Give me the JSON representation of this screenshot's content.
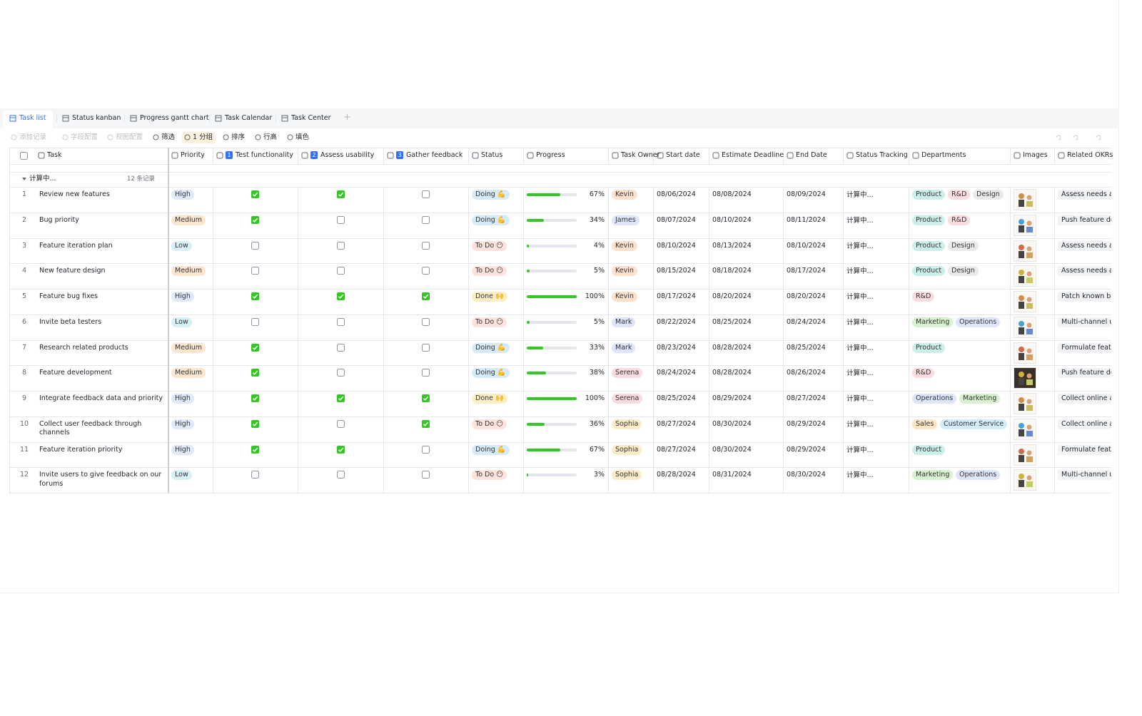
{
  "tabs": [
    "Task list",
    "Status kanban",
    "Progress gantt chart",
    "Task Calendar",
    "Task Center"
  ],
  "toolbar": [
    "添加记录",
    "字段配置",
    "视图配置",
    "筛选",
    "1 分组",
    "排序",
    "行高",
    "填色"
  ],
  "columns": [
    "Task",
    "Priority",
    "Test functionality",
    "Assess usability",
    "Gather feedback",
    "Status",
    "Progress",
    "Task Owner",
    "Start date",
    "Estimate Deadline",
    "End Date",
    "Status Tracking",
    "Departments",
    "Images",
    "Related OKRs"
  ],
  "column_numbers": [
    "1",
    "2",
    "3"
  ],
  "group": {
    "label": "计算中...",
    "count": "12 条记录"
  },
  "tag_colors": {
    "High": "#dfe9fc",
    "Medium": "#fde6cf",
    "Low": "#d7f0f8",
    "Doing 💪": "#d6ebfa",
    "To Do 😶": "#fde3dc",
    "Done 🙌": "#fcefc7",
    "Kevin": "#fde1cc",
    "James": "#dfe6fb",
    "Mark": "#dfe6fb",
    "Serena": "#fadbe0",
    "Sophia": "#fbecc9",
    "Product": "#cdefec",
    "R&D": "#fbdcdf",
    "Design": "#e9eaec",
    "Marketing": "#d8f2cf",
    "Operations": "#dee6fb",
    "Sales": "#fce5c4",
    "Customer Service": "#d2edf9"
  },
  "rows": [
    {
      "no": "1",
      "task": "Review new features",
      "priority": "High",
      "test": true,
      "assess": true,
      "gather": false,
      "status": "Doing 💪",
      "progress": 67,
      "progress_label": "67%",
      "owner": "Kevin",
      "start": "08/06/2024",
      "deadline": "08/08/2024",
      "end": "08/09/2024",
      "tracking": "计算中...",
      "departments": [
        "Product",
        "R&D",
        "Design"
      ],
      "okr": "Assess needs and"
    },
    {
      "no": "2",
      "task": "Bug priority",
      "priority": "Medium",
      "test": true,
      "assess": false,
      "gather": false,
      "status": "Doing 💪",
      "progress": 34,
      "progress_label": "34%",
      "owner": "James",
      "start": "08/07/2024",
      "deadline": "08/10/2024",
      "end": "08/11/2024",
      "tracking": "计算中...",
      "departments": [
        "Product",
        "R&D"
      ],
      "okr": "Push feature dev"
    },
    {
      "no": "3",
      "task": "Feature iteration plan",
      "priority": "Low",
      "test": false,
      "assess": false,
      "gather": false,
      "status": "To Do 😶",
      "progress": 4,
      "progress_label": "4%",
      "owner": "Kevin",
      "start": "08/10/2024",
      "deadline": "08/13/2024",
      "end": "08/10/2024",
      "tracking": "计算中...",
      "departments": [
        "Product",
        "Design"
      ],
      "okr": "Assess needs and"
    },
    {
      "no": "4",
      "task": "New feature design",
      "priority": "Medium",
      "test": false,
      "assess": false,
      "gather": false,
      "status": "To Do 😶",
      "progress": 5,
      "progress_label": "5%",
      "owner": "Kevin",
      "start": "08/15/2024",
      "deadline": "08/18/2024",
      "end": "08/17/2024",
      "tracking": "计算中...",
      "departments": [
        "Product",
        "Design"
      ],
      "okr": "Assess needs and"
    },
    {
      "no": "5",
      "task": "Feature bug fixes",
      "priority": "High",
      "test": true,
      "assess": true,
      "gather": true,
      "status": "Done 🙌",
      "progress": 100,
      "progress_label": "100%",
      "owner": "Kevin",
      "start": "08/17/2024",
      "deadline": "08/20/2024",
      "end": "08/20/2024",
      "tracking": "计算中...",
      "departments": [
        "R&D"
      ],
      "okr": "Patch known bug"
    },
    {
      "no": "6",
      "task": "Invite beta testers",
      "priority": "Low",
      "test": false,
      "assess": false,
      "gather": false,
      "status": "To Do 😶",
      "progress": 5,
      "progress_label": "5%",
      "owner": "Mark",
      "start": "08/22/2024",
      "deadline": "08/25/2024",
      "end": "08/24/2024",
      "tracking": "计算中...",
      "departments": [
        "Marketing",
        "Operations"
      ],
      "okr": "Multi-channel use"
    },
    {
      "no": "7",
      "task": "Research related products",
      "priority": "Medium",
      "test": true,
      "assess": false,
      "gather": false,
      "status": "Doing 💪",
      "progress": 33,
      "progress_label": "33%",
      "owner": "Mark",
      "start": "08/23/2024",
      "deadline": "08/28/2024",
      "end": "08/25/2024",
      "tracking": "计算中...",
      "departments": [
        "Product"
      ],
      "okr": "Formulate feature"
    },
    {
      "no": "8",
      "task": "Feature development",
      "priority": "Medium",
      "test": true,
      "assess": false,
      "gather": false,
      "status": "Doing 💪",
      "progress": 38,
      "progress_label": "38%",
      "owner": "Serena",
      "start": "08/24/2024",
      "deadline": "08/28/2024",
      "end": "08/26/2024",
      "tracking": "计算中...",
      "departments": [
        "R&D"
      ],
      "okr": "Push feature dev"
    },
    {
      "no": "9",
      "task": "Integrate feedback data and priority",
      "priority": "High",
      "test": true,
      "assess": true,
      "gather": true,
      "status": "Done 🙌",
      "progress": 100,
      "progress_label": "100%",
      "owner": "Serena",
      "start": "08/25/2024",
      "deadline": "08/29/2024",
      "end": "08/27/2024",
      "tracking": "计算中...",
      "departments": [
        "Operations",
        "Marketing"
      ],
      "okr": "Collect online and"
    },
    {
      "no": "10",
      "task": "Collect user feedback through channels",
      "priority": "High",
      "test": true,
      "assess": false,
      "gather": true,
      "status": "To Do 😶",
      "progress": 36,
      "progress_label": "36%",
      "owner": "Sophia",
      "start": "08/27/2024",
      "deadline": "08/30/2024",
      "end": "08/29/2024",
      "tracking": "计算中...",
      "departments": [
        "Sales",
        "Customer Service"
      ],
      "okr": "Collect online and"
    },
    {
      "no": "11",
      "task": "Feature iteration priority",
      "priority": "High",
      "test": true,
      "assess": true,
      "gather": false,
      "status": "Doing 💪",
      "progress": 67,
      "progress_label": "67%",
      "owner": "Sophia",
      "start": "08/27/2024",
      "deadline": "08/30/2024",
      "end": "08/29/2024",
      "tracking": "计算中...",
      "departments": [
        "Product"
      ],
      "okr": "Formulate feature"
    },
    {
      "no": "12",
      "task": "Invite users to give feedback on our forums",
      "priority": "Low",
      "test": false,
      "assess": false,
      "gather": false,
      "status": "To Do 😶",
      "progress": 3,
      "progress_label": "3%",
      "owner": "Sophia",
      "start": "08/28/2024",
      "deadline": "08/31/2024",
      "end": "08/30/2024",
      "tracking": "计算中...",
      "departments": [
        "Marketing",
        "Operations"
      ],
      "okr": "Multi-channel use"
    }
  ]
}
